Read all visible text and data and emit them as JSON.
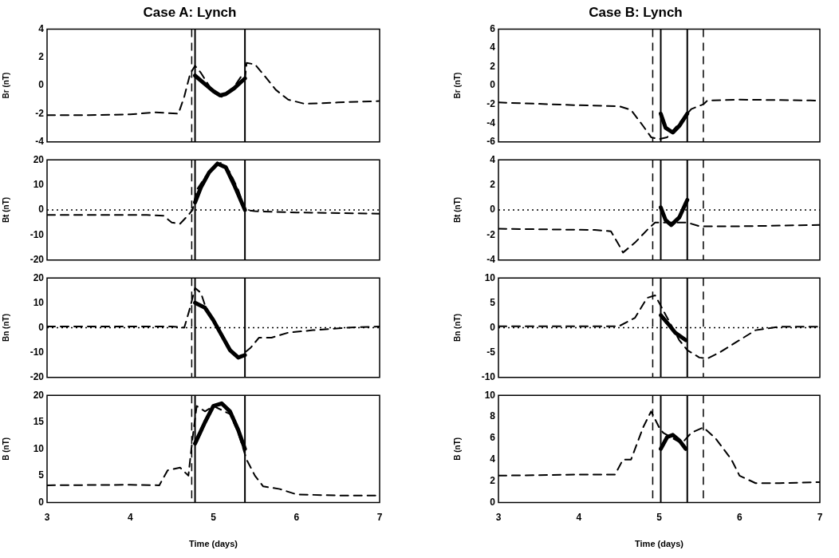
{
  "chart_data": [
    {
      "type": "line",
      "title": "Case A: Lynch",
      "ylabel": "Br (nT)",
      "xlim": [
        3,
        7
      ],
      "xticks": [
        3,
        4,
        5,
        6,
        7
      ],
      "ylim": [
        -4,
        4
      ],
      "yticks": [
        -4,
        -2,
        0,
        2,
        4
      ],
      "tick_labels": "y",
      "legend": false,
      "marker": "none",
      "series": [
        {
          "color": "#000000",
          "line_style": "dashed",
          "x": [
            3,
            3.5,
            4,
            4.3,
            4.58,
            4.65,
            4.72,
            4.78,
            4.85,
            5,
            5.1,
            5.25,
            5.33,
            5.38,
            5.4,
            5.5,
            5.6,
            5.75,
            5.9,
            6.1,
            6.5,
            7
          ],
          "values": [
            -2.1,
            -2.1,
            -2.05,
            -1.9,
            -2,
            -0.8,
            0.8,
            1.4,
            0.9,
            -0.5,
            -0.8,
            -0.1,
            0.6,
            0.4,
            1.6,
            1.5,
            0.8,
            -0.3,
            -1,
            -1.3,
            -1.2,
            -1.1
          ]
        },
        {
          "color": "#000000",
          "line_style": "solid",
          "x": [
            4.78,
            4.9,
            5,
            5.08,
            5.15,
            5.25,
            5.38
          ],
          "values": [
            0.7,
            0.1,
            -0.4,
            -0.7,
            -0.6,
            -0.2,
            0.5
          ]
        }
      ],
      "ref_lines": [
        {
          "axis": "x",
          "value": 4.74,
          "line_style": "dashed"
        },
        {
          "axis": "x",
          "value": 4.78,
          "line_style": "solid"
        },
        {
          "axis": "x",
          "value": 5.38,
          "line_style": "solid"
        }
      ]
    },
    {
      "type": "line",
      "ylabel": "Bt (nT)",
      "xlim": [
        3,
        7
      ],
      "xticks": [
        3,
        4,
        5,
        6,
        7
      ],
      "ylim": [
        -20,
        20
      ],
      "yticks": [
        -20,
        -10,
        0,
        10,
        20
      ],
      "tick_labels": "y",
      "legend": false,
      "marker": "none",
      "series": [
        {
          "color": "#000000",
          "line_style": "dashed",
          "x": [
            3,
            4.2,
            4.4,
            4.5,
            4.6,
            4.7,
            4.75,
            4.8,
            4.9,
            5,
            5.1,
            5.2,
            5.3,
            5.38,
            5.5,
            6,
            7
          ],
          "values": [
            -2,
            -2,
            -2.3,
            -5,
            -5.5,
            -2,
            0,
            8,
            13,
            17,
            19,
            15,
            8,
            0,
            -0.5,
            -1,
            -1.5
          ]
        },
        {
          "color": "#000000",
          "line_style": "solid",
          "x": [
            4.78,
            4.85,
            4.95,
            5.05,
            5.15,
            5.25,
            5.38
          ],
          "values": [
            3,
            9,
            15,
            18.5,
            17,
            10,
            0
          ]
        }
      ],
      "ref_lines": [
        {
          "axis": "x",
          "value": 4.74,
          "line_style": "dashed"
        },
        {
          "axis": "x",
          "value": 4.78,
          "line_style": "solid"
        },
        {
          "axis": "x",
          "value": 5.38,
          "line_style": "solid"
        },
        {
          "axis": "y",
          "value": 0,
          "line_style": "dotted"
        }
      ]
    },
    {
      "type": "line",
      "ylabel": "Bn (nT)",
      "xlim": [
        3,
        7
      ],
      "xticks": [
        3,
        4,
        5,
        6,
        7
      ],
      "ylim": [
        -20,
        20
      ],
      "yticks": [
        -20,
        -10,
        0,
        10,
        20
      ],
      "tick_labels": "y",
      "legend": false,
      "marker": "none",
      "series": [
        {
          "color": "#000000",
          "line_style": "dashed",
          "x": [
            3,
            4.5,
            4.65,
            4.72,
            4.78,
            4.85,
            4.9,
            5,
            5.1,
            5.2,
            5.3,
            5.38,
            5.45,
            5.55,
            5.7,
            5.9,
            6.2,
            6.6,
            7
          ],
          "values": [
            0.5,
            0.5,
            0,
            8,
            16,
            14,
            9,
            3,
            -3,
            -9,
            -12,
            -10,
            -8,
            -4,
            -4,
            -2,
            -1,
            0,
            0.5
          ]
        },
        {
          "color": "#000000",
          "line_style": "solid",
          "x": [
            4.78,
            4.9,
            5,
            5.1,
            5.2,
            5.3,
            5.38
          ],
          "values": [
            10,
            8,
            3,
            -3,
            -9,
            -12,
            -11
          ]
        }
      ],
      "ref_lines": [
        {
          "axis": "x",
          "value": 4.74,
          "line_style": "dashed"
        },
        {
          "axis": "x",
          "value": 4.78,
          "line_style": "solid"
        },
        {
          "axis": "x",
          "value": 5.38,
          "line_style": "solid"
        },
        {
          "axis": "y",
          "value": 0,
          "line_style": "dotted"
        }
      ]
    },
    {
      "type": "line",
      "ylabel": "B (nT)",
      "xlabel": "Time (days)",
      "xlim": [
        3,
        7
      ],
      "xticks": [
        3,
        4,
        5,
        6,
        7
      ],
      "ylim": [
        0,
        20
      ],
      "yticks": [
        0,
        5,
        10,
        15,
        20
      ],
      "legend": false,
      "marker": "none",
      "series": [
        {
          "color": "#000000",
          "line_style": "dashed",
          "x": [
            3,
            4,
            4.35,
            4.45,
            4.6,
            4.7,
            4.75,
            4.8,
            4.9,
            5,
            5.2,
            5.3,
            5.4,
            5.5,
            5.6,
            5.8,
            6,
            6.5,
            7
          ],
          "values": [
            3.2,
            3.3,
            3.2,
            6,
            6.5,
            5,
            12,
            18,
            17,
            18,
            16.5,
            13,
            8,
            5,
            3,
            2.5,
            1.5,
            1.3,
            1.3
          ]
        },
        {
          "color": "#000000",
          "line_style": "solid",
          "x": [
            4.78,
            4.9,
            5,
            5.1,
            5.2,
            5.3,
            5.38
          ],
          "values": [
            11,
            15,
            18,
            18.5,
            17,
            13.5,
            10
          ]
        }
      ],
      "ref_lines": [
        {
          "axis": "x",
          "value": 4.74,
          "line_style": "dashed"
        },
        {
          "axis": "x",
          "value": 4.78,
          "line_style": "solid"
        },
        {
          "axis": "x",
          "value": 5.38,
          "line_style": "solid"
        }
      ]
    },
    {
      "type": "line",
      "title": "Case B: Lynch",
      "ylabel": "Br (nT)",
      "xlim": [
        3,
        7
      ],
      "xticks": [
        3,
        4,
        5,
        6,
        7
      ],
      "ylim": [
        -6,
        6
      ],
      "yticks": [
        -6,
        -4,
        -2,
        0,
        2,
        4,
        6
      ],
      "tick_labels": "y",
      "legend": false,
      "marker": "none",
      "series": [
        {
          "color": "#000000",
          "line_style": "dashed",
          "x": [
            3,
            4,
            4.5,
            4.65,
            4.8,
            4.9,
            5,
            5.1,
            5.4,
            5.55,
            5.6,
            6,
            7
          ],
          "values": [
            -1.8,
            -2.1,
            -2.2,
            -2.6,
            -4.3,
            -5.5,
            -5.7,
            -5.5,
            -2.5,
            -2,
            -1.6,
            -1.5,
            -1.6
          ]
        },
        {
          "color": "#000000",
          "line_style": "solid",
          "x": [
            5.02,
            5.08,
            5.17,
            5.25,
            5.35
          ],
          "values": [
            -3,
            -4.5,
            -5,
            -4.3,
            -3
          ]
        }
      ],
      "ref_lines": [
        {
          "axis": "x",
          "value": 4.92,
          "line_style": "dashed"
        },
        {
          "axis": "x",
          "value": 5.02,
          "line_style": "solid"
        },
        {
          "axis": "x",
          "value": 5.35,
          "line_style": "solid"
        },
        {
          "axis": "x",
          "value": 5.55,
          "line_style": "dashed"
        }
      ]
    },
    {
      "type": "line",
      "ylabel": "Bt (nT)",
      "xlim": [
        3,
        7
      ],
      "xticks": [
        3,
        4,
        5,
        6,
        7
      ],
      "ylim": [
        -4,
        4
      ],
      "yticks": [
        -4,
        -2,
        0,
        2,
        4
      ],
      "tick_labels": "y",
      "legend": false,
      "marker": "none",
      "series": [
        {
          "color": "#000000",
          "line_style": "dashed",
          "x": [
            3,
            4.2,
            4.4,
            4.5,
            4.55,
            4.7,
            4.85,
            4.95,
            5.35,
            5.5,
            6,
            7
          ],
          "values": [
            -1.5,
            -1.6,
            -1.7,
            -2.8,
            -3.4,
            -2.6,
            -1.6,
            -1,
            -1,
            -1.3,
            -1.3,
            -1.2
          ]
        },
        {
          "color": "#000000",
          "line_style": "solid",
          "x": [
            5.02,
            5.08,
            5.15,
            5.25,
            5.35
          ],
          "values": [
            0.2,
            -0.8,
            -1.2,
            -0.6,
            0.8
          ]
        }
      ],
      "ref_lines": [
        {
          "axis": "x",
          "value": 4.92,
          "line_style": "dashed"
        },
        {
          "axis": "x",
          "value": 5.02,
          "line_style": "solid"
        },
        {
          "axis": "x",
          "value": 5.35,
          "line_style": "solid"
        },
        {
          "axis": "x",
          "value": 5.55,
          "line_style": "dashed"
        },
        {
          "axis": "y",
          "value": 0,
          "line_style": "dotted"
        }
      ]
    },
    {
      "type": "line",
      "ylabel": "Bn (nT)",
      "xlim": [
        3,
        7
      ],
      "xticks": [
        3,
        4,
        5,
        6,
        7
      ],
      "ylim": [
        -10,
        10
      ],
      "yticks": [
        -10,
        -5,
        0,
        5,
        10
      ],
      "tick_labels": "y",
      "legend": false,
      "marker": "none",
      "series": [
        {
          "color": "#000000",
          "line_style": "dashed",
          "x": [
            3,
            4.5,
            4.7,
            4.85,
            4.95,
            5,
            5.1,
            5.25,
            5.35,
            5.5,
            5.6,
            5.75,
            6,
            6.2,
            6.5,
            7
          ],
          "values": [
            0.3,
            0.3,
            2,
            6,
            6.5,
            5,
            2,
            -2.5,
            -4.5,
            -6,
            -6.2,
            -5,
            -2.5,
            -0.5,
            0.2,
            0.2
          ]
        },
        {
          "color": "#000000",
          "line_style": "solid",
          "x": [
            5.02,
            5.1,
            5.2,
            5.33
          ],
          "values": [
            2.5,
            1,
            -1,
            -2.5
          ]
        }
      ],
      "ref_lines": [
        {
          "axis": "x",
          "value": 4.92,
          "line_style": "dashed"
        },
        {
          "axis": "x",
          "value": 5.02,
          "line_style": "solid"
        },
        {
          "axis": "x",
          "value": 5.35,
          "line_style": "solid"
        },
        {
          "axis": "x",
          "value": 5.55,
          "line_style": "dashed"
        },
        {
          "axis": "y",
          "value": 0,
          "line_style": "dotted"
        }
      ]
    },
    {
      "type": "line",
      "ylabel": "B (nT)",
      "xlabel": "Time (days)",
      "xlim": [
        3,
        7
      ],
      "xticks": [
        3,
        4,
        5,
        6,
        7
      ],
      "ylim": [
        0,
        10
      ],
      "yticks": [
        0,
        2,
        4,
        6,
        8,
        10
      ],
      "legend": false,
      "marker": "none",
      "series": [
        {
          "color": "#000000",
          "line_style": "dashed",
          "x": [
            3,
            4,
            4.45,
            4.55,
            4.65,
            4.8,
            4.9,
            5,
            5.05,
            5.28,
            5.4,
            5.55,
            5.7,
            5.9,
            6,
            6.2,
            6.5,
            7
          ],
          "values": [
            2.5,
            2.6,
            2.6,
            4,
            4,
            7,
            8.5,
            7,
            6.5,
            5.5,
            6.5,
            7,
            6,
            4,
            2.5,
            1.8,
            1.8,
            1.9
          ]
        },
        {
          "color": "#000000",
          "line_style": "solid",
          "x": [
            5.02,
            5.1,
            5.17,
            5.25,
            5.33
          ],
          "values": [
            5,
            6.1,
            6.3,
            5.8,
            5
          ]
        }
      ],
      "ref_lines": [
        {
          "axis": "x",
          "value": 4.92,
          "line_style": "dashed"
        },
        {
          "axis": "x",
          "value": 5.02,
          "line_style": "solid"
        },
        {
          "axis": "x",
          "value": 5.35,
          "line_style": "solid"
        },
        {
          "axis": "x",
          "value": 5.55,
          "line_style": "dashed"
        }
      ]
    }
  ]
}
